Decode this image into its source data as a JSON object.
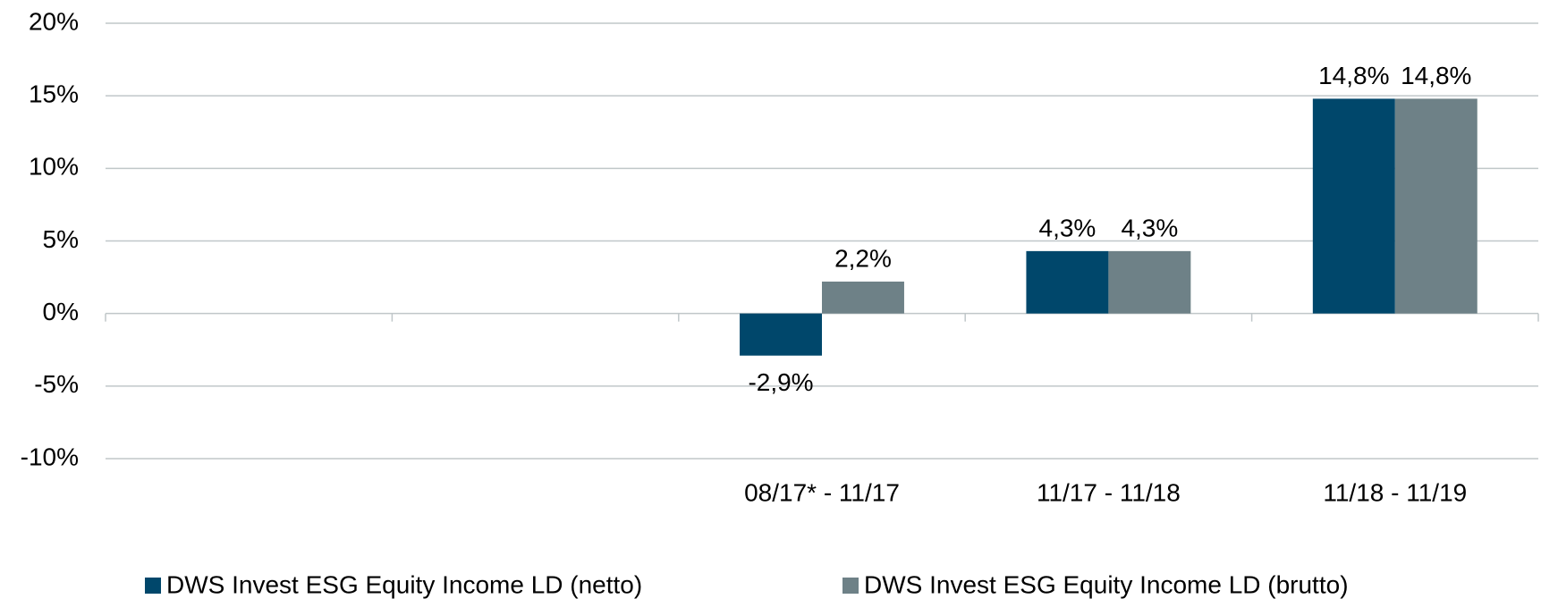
{
  "chart_data": {
    "type": "bar",
    "categories": [
      null,
      null,
      "08/17* - 11/17",
      "11/17 - 11/18",
      "11/18 - 11/19"
    ],
    "series": [
      {
        "name": "DWS Invest ESG Equity Income LD (netto)",
        "color": "#00476b",
        "values": [
          null,
          null,
          -2.9,
          4.3,
          14.8
        ],
        "value_labels": [
          null,
          null,
          "-2,9%",
          "4,3%",
          "14,8%"
        ]
      },
      {
        "name": "DWS Invest ESG Equity Income LD (brutto)",
        "color": "#6e8187",
        "values": [
          null,
          null,
          2.2,
          4.3,
          14.8
        ],
        "value_labels": [
          null,
          null,
          "2,2%",
          "4,3%",
          "14,8%"
        ]
      }
    ],
    "ylim": [
      -10,
      20
    ],
    "yticks": [
      {
        "value": -10,
        "label": "-10%"
      },
      {
        "value": -5,
        "label": "-5%"
      },
      {
        "value": 0,
        "label": "0%"
      },
      {
        "value": 5,
        "label": "5%"
      },
      {
        "value": 10,
        "label": "10%"
      },
      {
        "value": 15,
        "label": "15%"
      },
      {
        "value": 20,
        "label": "20%"
      }
    ],
    "grid": true,
    "legend": "bottom"
  }
}
